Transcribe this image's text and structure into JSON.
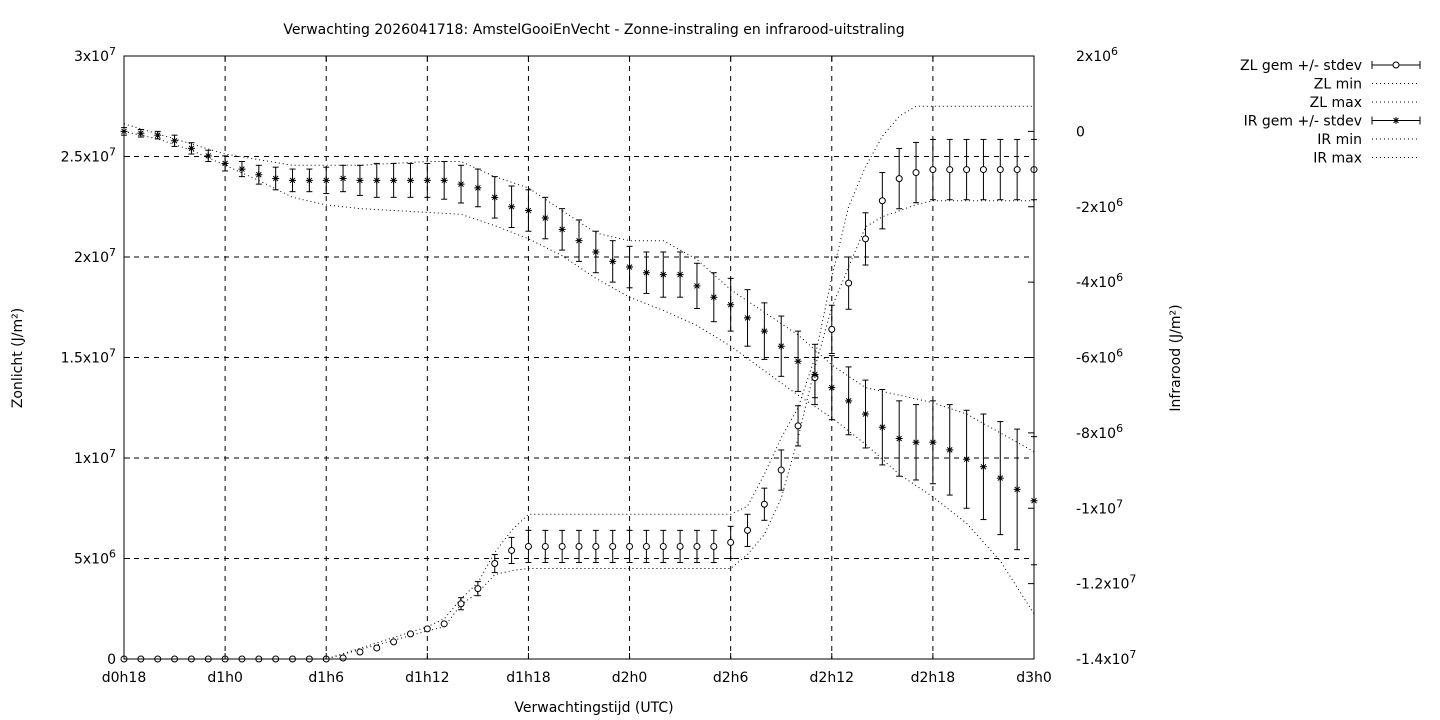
{
  "chart_data": {
    "type": "scatter",
    "title": "Verwachting 2026041718: AmstelGooiEnVecht - Zonne-instraling en infrarood-uitstraling",
    "xlabel": "Verwachtingstijd (UTC)",
    "ylabel_left": "Zonlicht (J/m²)",
    "ylabel_right": "Infrarood (J/m²)",
    "grid": true,
    "legend_position": "outside-right",
    "x_unit": "hours since d0h18",
    "xlim": [
      0,
      54
    ],
    "ylim_left": [
      0,
      30000000
    ],
    "ylim_right": [
      -14000000,
      2000000
    ],
    "x_ticks": [
      {
        "x": 0,
        "label": "d0h18"
      },
      {
        "x": 6,
        "label": "d1h0"
      },
      {
        "x": 12,
        "label": "d1h6"
      },
      {
        "x": 18,
        "label": "d1h12"
      },
      {
        "x": 24,
        "label": "d1h18"
      },
      {
        "x": 30,
        "label": "d2h0"
      },
      {
        "x": 36,
        "label": "d2h6"
      },
      {
        "x": 42,
        "label": "d2h12"
      },
      {
        "x": 48,
        "label": "d2h18"
      },
      {
        "x": 54,
        "label": "d3h0"
      }
    ],
    "y_ticks_left": [
      {
        "value": 0,
        "mant": "0",
        "exp": ""
      },
      {
        "value": 5000000,
        "mant": "5x10",
        "exp": "6"
      },
      {
        "value": 10000000,
        "mant": "1x10",
        "exp": "7"
      },
      {
        "value": 15000000,
        "mant": "1.5x10",
        "exp": "7"
      },
      {
        "value": 20000000,
        "mant": "2x10",
        "exp": "7"
      },
      {
        "value": 25000000,
        "mant": "2.5x10",
        "exp": "7"
      },
      {
        "value": 30000000,
        "mant": "3x10",
        "exp": "7"
      }
    ],
    "y_ticks_right": [
      {
        "value": 2000000,
        "mant": "2x10",
        "exp": "6"
      },
      {
        "value": 0,
        "mant": "0",
        "exp": ""
      },
      {
        "value": -2000000,
        "mant": "-2x10",
        "exp": "6"
      },
      {
        "value": -4000000,
        "mant": "-4x10",
        "exp": "6"
      },
      {
        "value": -6000000,
        "mant": "-6x10",
        "exp": "6"
      },
      {
        "value": -8000000,
        "mant": "-8x10",
        "exp": "6"
      },
      {
        "value": -10000000,
        "mant": "-1x10",
        "exp": "7"
      },
      {
        "value": -12000000,
        "mant": "-1.2x10",
        "exp": "7"
      },
      {
        "value": -14000000,
        "mant": "-1.4x10",
        "exp": "7"
      }
    ],
    "legend": [
      {
        "key": "zl_mean",
        "label": "ZL gem +/- stdev"
      },
      {
        "key": "zl_min",
        "label": "ZL min"
      },
      {
        "key": "zl_max",
        "label": "ZL max"
      },
      {
        "key": "ir_mean",
        "label": "IR gem +/- stdev"
      },
      {
        "key": "ir_min",
        "label": "IR min"
      },
      {
        "key": "ir_max",
        "label": "IR max"
      }
    ],
    "zl_mean": [
      [
        0,
        0,
        0
      ],
      [
        1,
        0,
        0
      ],
      [
        2,
        0,
        0
      ],
      [
        3,
        0,
        0
      ],
      [
        4,
        0,
        0
      ],
      [
        5,
        0,
        0
      ],
      [
        6,
        0,
        0
      ],
      [
        7,
        0,
        0
      ],
      [
        8,
        0,
        0
      ],
      [
        9,
        0,
        0
      ],
      [
        10,
        0,
        0
      ],
      [
        11,
        0,
        0
      ],
      [
        12,
        0,
        0
      ],
      [
        13,
        50000,
        0
      ],
      [
        14,
        350000,
        0
      ],
      [
        15,
        550000,
        0
      ],
      [
        16,
        850000,
        0
      ],
      [
        17,
        1250000,
        0
      ],
      [
        18,
        1500000,
        0
      ],
      [
        19,
        1750000,
        0
      ],
      [
        20,
        2750000,
        300000
      ],
      [
        21,
        3500000,
        350000
      ],
      [
        22,
        4750000,
        450000
      ],
      [
        23,
        5400000,
        650000
      ],
      [
        24,
        5600000,
        800000
      ],
      [
        25,
        5600000,
        800000
      ],
      [
        26,
        5600000,
        800000
      ],
      [
        27,
        5600000,
        800000
      ],
      [
        28,
        5600000,
        800000
      ],
      [
        29,
        5600000,
        800000
      ],
      [
        30,
        5600000,
        800000
      ],
      [
        31,
        5600000,
        800000
      ],
      [
        32,
        5600000,
        800000
      ],
      [
        33,
        5600000,
        800000
      ],
      [
        34,
        5600000,
        800000
      ],
      [
        35,
        5600000,
        800000
      ],
      [
        36,
        5800000,
        800000
      ],
      [
        37,
        6400000,
        800000
      ],
      [
        38,
        7700000,
        800000
      ],
      [
        39,
        9400000,
        1000000
      ],
      [
        40,
        11600000,
        1000000
      ],
      [
        41,
        14000000,
        1000000
      ],
      [
        42,
        16400000,
        1200000
      ],
      [
        43,
        18700000,
        1300000
      ],
      [
        44,
        20900000,
        1300000
      ],
      [
        45,
        22800000,
        1400000
      ],
      [
        46,
        23900000,
        1500000
      ],
      [
        47,
        24200000,
        1500000
      ],
      [
        48,
        24350000,
        1500000
      ],
      [
        49,
        24350000,
        1500000
      ],
      [
        50,
        24350000,
        1500000
      ],
      [
        51,
        24350000,
        1500000
      ],
      [
        52,
        24350000,
        1500000
      ],
      [
        53,
        24350000,
        1500000
      ],
      [
        54,
        24350000,
        1500000
      ]
    ],
    "ir_mean": [
      [
        0,
        0,
        100000
      ],
      [
        1,
        -50000,
        100000
      ],
      [
        2,
        -100000,
        100000
      ],
      [
        3,
        -250000,
        150000
      ],
      [
        4,
        -450000,
        150000
      ],
      [
        5,
        -650000,
        150000
      ],
      [
        6,
        -850000,
        200000
      ],
      [
        7,
        -1000000,
        200000
      ],
      [
        8,
        -1150000,
        250000
      ],
      [
        9,
        -1250000,
        300000
      ],
      [
        10,
        -1300000,
        300000
      ],
      [
        11,
        -1300000,
        300000
      ],
      [
        12,
        -1300000,
        350000
      ],
      [
        13,
        -1250000,
        350000
      ],
      [
        14,
        -1300000,
        400000
      ],
      [
        15,
        -1300000,
        450000
      ],
      [
        16,
        -1300000,
        450000
      ],
      [
        17,
        -1300000,
        450000
      ],
      [
        18,
        -1300000,
        450000
      ],
      [
        19,
        -1300000,
        500000
      ],
      [
        20,
        -1400000,
        500000
      ],
      [
        21,
        -1500000,
        500000
      ],
      [
        22,
        -1750000,
        550000
      ],
      [
        23,
        -2000000,
        550000
      ],
      [
        24,
        -2100000,
        550000
      ],
      [
        25,
        -2300000,
        550000
      ],
      [
        26,
        -2600000,
        550000
      ],
      [
        27,
        -2900000,
        550000
      ],
      [
        28,
        -3200000,
        550000
      ],
      [
        29,
        -3450000,
        550000
      ],
      [
        30,
        -3600000,
        550000
      ],
      [
        31,
        -3750000,
        550000
      ],
      [
        32,
        -3800000,
        600000
      ],
      [
        33,
        -3800000,
        600000
      ],
      [
        34,
        -4100000,
        600000
      ],
      [
        35,
        -4400000,
        650000
      ],
      [
        36,
        -4600000,
        700000
      ],
      [
        37,
        -4950000,
        750000
      ],
      [
        38,
        -5300000,
        750000
      ],
      [
        39,
        -5700000,
        800000
      ],
      [
        40,
        -6100000,
        800000
      ],
      [
        41,
        -6450000,
        800000
      ],
      [
        42,
        -6800000,
        850000
      ],
      [
        43,
        -7150000,
        900000
      ],
      [
        44,
        -7500000,
        900000
      ],
      [
        45,
        -7850000,
        1000000
      ],
      [
        46,
        -8150000,
        1000000
      ],
      [
        47,
        -8250000,
        1000000
      ],
      [
        48,
        -8250000,
        1100000
      ],
      [
        49,
        -8450000,
        1200000
      ],
      [
        50,
        -8700000,
        1300000
      ],
      [
        51,
        -8900000,
        1400000
      ],
      [
        52,
        -9200000,
        1500000
      ],
      [
        53,
        -9500000,
        1600000
      ],
      [
        54,
        -9800000,
        1700000
      ]
    ],
    "zl_min": [
      [
        0,
        0
      ],
      [
        12,
        0
      ],
      [
        18,
        1400000
      ],
      [
        19,
        1600000
      ],
      [
        20,
        2700000
      ],
      [
        21,
        3300000
      ],
      [
        22,
        4200000
      ],
      [
        23,
        4400000
      ],
      [
        24,
        4500000
      ],
      [
        36,
        4500000
      ],
      [
        37,
        5200000
      ],
      [
        38,
        6200000
      ],
      [
        39,
        8000000
      ],
      [
        40,
        11000000
      ],
      [
        41,
        14500000
      ],
      [
        42,
        17500000
      ],
      [
        43,
        19500000
      ],
      [
        44,
        21500000
      ],
      [
        45,
        22000000
      ],
      [
        46,
        22300000
      ],
      [
        47,
        22600000
      ],
      [
        48,
        22800000
      ],
      [
        54,
        22800000
      ]
    ],
    "zl_max": [
      [
        0,
        0
      ],
      [
        12,
        0
      ],
      [
        18,
        1600000
      ],
      [
        19,
        2000000
      ],
      [
        20,
        3000000
      ],
      [
        21,
        3800000
      ],
      [
        22,
        5300000
      ],
      [
        23,
        6400000
      ],
      [
        24,
        7200000
      ],
      [
        36,
        7200000
      ],
      [
        37,
        7600000
      ],
      [
        38,
        9200000
      ],
      [
        39,
        11000000
      ],
      [
        40,
        12500000
      ],
      [
        41,
        15000000
      ],
      [
        42,
        19000000
      ],
      [
        43,
        22500000
      ],
      [
        44,
        24500000
      ],
      [
        45,
        26000000
      ],
      [
        46,
        27000000
      ],
      [
        47,
        27500000
      ],
      [
        48,
        27500000
      ],
      [
        54,
        27500000
      ]
    ],
    "ir_min": [
      [
        0,
        0
      ],
      [
        2,
        -200000
      ],
      [
        4,
        -500000
      ],
      [
        6,
        -900000
      ],
      [
        8,
        -1300000
      ],
      [
        10,
        -1750000
      ],
      [
        12,
        -1950000
      ],
      [
        14,
        -2050000
      ],
      [
        16,
        -2100000
      ],
      [
        18,
        -2150000
      ],
      [
        20,
        -2200000
      ],
      [
        22,
        -2500000
      ],
      [
        24,
        -2850000
      ],
      [
        26,
        -3300000
      ],
      [
        28,
        -3900000
      ],
      [
        30,
        -4400000
      ],
      [
        32,
        -4750000
      ],
      [
        34,
        -5150000
      ],
      [
        36,
        -5700000
      ],
      [
        38,
        -6350000
      ],
      [
        40,
        -7000000
      ],
      [
        42,
        -7600000
      ],
      [
        44,
        -8300000
      ],
      [
        46,
        -9100000
      ],
      [
        48,
        -9700000
      ],
      [
        50,
        -10400000
      ],
      [
        52,
        -11400000
      ],
      [
        54,
        -12800000
      ]
    ],
    "ir_max": [
      [
        0,
        200000
      ],
      [
        6,
        -600000
      ],
      [
        10,
        -900000
      ],
      [
        14,
        -900000
      ],
      [
        18,
        -800000
      ],
      [
        20,
        -800000
      ],
      [
        22,
        -1200000
      ],
      [
        24,
        -1500000
      ],
      [
        26,
        -2100000
      ],
      [
        28,
        -2700000
      ],
      [
        30,
        -2900000
      ],
      [
        32,
        -2900000
      ],
      [
        34,
        -3400000
      ],
      [
        36,
        -4200000
      ],
      [
        38,
        -4800000
      ],
      [
        40,
        -5400000
      ],
      [
        42,
        -6200000
      ],
      [
        44,
        -6800000
      ],
      [
        46,
        -7000000
      ],
      [
        48,
        -7200000
      ],
      [
        50,
        -7500000
      ],
      [
        52,
        -8000000
      ],
      [
        54,
        -8500000
      ]
    ]
  }
}
